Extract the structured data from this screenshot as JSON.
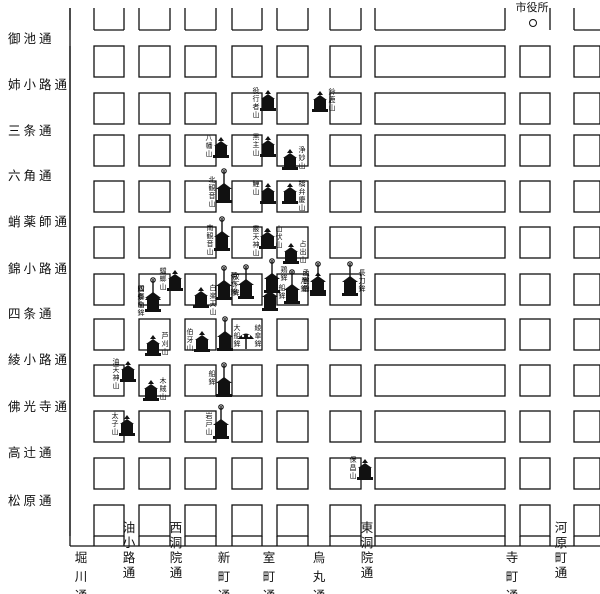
{
  "map": {
    "city_hall_label": "市役所",
    "east_west_streets": [
      {
        "id": "oike",
        "label": "御池通"
      },
      {
        "id": "aneyakoji",
        "label": "姉小路通"
      },
      {
        "id": "sanjo",
        "label": "三条通"
      },
      {
        "id": "rokkaku",
        "label": "六角通"
      },
      {
        "id": "takoyakushi",
        "label": "蛸薬師通"
      },
      {
        "id": "nishikikoji",
        "label": "錦小路通"
      },
      {
        "id": "shijo",
        "label": "四条通"
      },
      {
        "id": "ayanokoji",
        "label": "綾小路通"
      },
      {
        "id": "bukkoji",
        "label": "佛光寺通"
      },
      {
        "id": "takatsuji",
        "label": "高辻通"
      },
      {
        "id": "matsubara",
        "label": "松原通"
      }
    ],
    "north_south_streets": [
      {
        "id": "horikawa",
        "label": "堀川通"
      },
      {
        "id": "aburanokoji",
        "label": "油小路通"
      },
      {
        "id": "nishinotoin",
        "label": "西洞院通"
      },
      {
        "id": "shinmachi",
        "label": "新町通"
      },
      {
        "id": "muromachi",
        "label": "室町通"
      },
      {
        "id": "karasuma",
        "label": "烏丸通"
      },
      {
        "id": "higashinotoin",
        "label": "東洞院通"
      },
      {
        "id": "teramachi",
        "label": "寺町通"
      },
      {
        "id": "kawaramachi",
        "label": "河原町通"
      }
    ],
    "floats": [
      {
        "id": "yakugyoja",
        "label": "役行者山",
        "kind": "yama"
      },
      {
        "id": "suzuka",
        "label": "鈴鹿山",
        "kind": "yama"
      },
      {
        "id": "hachiman",
        "label": "八幡山",
        "kind": "yama"
      },
      {
        "id": "kuronushi",
        "label": "黒主山",
        "kind": "yama"
      },
      {
        "id": "jomyo",
        "label": "浄妙山",
        "kind": "yama"
      },
      {
        "id": "kitakannon",
        "label": "北観音山",
        "kind": "hoko"
      },
      {
        "id": "koi",
        "label": "鯉山",
        "kind": "yama"
      },
      {
        "id": "hashibenkei",
        "label": "橋弁慶山",
        "kind": "yama"
      },
      {
        "id": "tenjin",
        "label": "霰天神山",
        "kind": "yama"
      },
      {
        "id": "minamikannon",
        "label": "南観音山",
        "kind": "hoko"
      },
      {
        "id": "yamabushi",
        "label": "山伏山",
        "kind": "yama"
      },
      {
        "id": "urade",
        "label": "占出山",
        "kind": "yama"
      },
      {
        "id": "hakuga_n",
        "label": "蟷螂山",
        "kind": "yama"
      },
      {
        "id": "hakurakuten",
        "label": "白楽天山",
        "kind": "yama"
      },
      {
        "id": "kikusui",
        "label": "菊水鉾",
        "kind": "hoko"
      },
      {
        "id": "niwatori",
        "label": "鶏鉾",
        "kind": "hoko"
      },
      {
        "id": "tsuki",
        "label": "月鉾",
        "kind": "hoko"
      },
      {
        "id": "hoka",
        "label": "放下鉾",
        "kind": "hoko"
      },
      {
        "id": "iwato",
        "label": "岩戸山",
        "kind": "hoko"
      },
      {
        "id": "mofune",
        "label": "船鉾",
        "kind": "hoko"
      },
      {
        "id": "ashikari",
        "label": "芦刈山",
        "kind": "yama"
      },
      {
        "id": "hakuga",
        "label": "伯牙山",
        "kind": "yama"
      },
      {
        "id": "ofune",
        "label": "大船鉾",
        "kind": "hoko"
      },
      {
        "id": "ayagasa",
        "label": "綾傘鉾",
        "kind": "special"
      },
      {
        "id": "kanko",
        "label": "函谷鉾",
        "kind": "hoko"
      },
      {
        "id": "moso",
        "label": "孟宗山",
        "kind": "yama"
      },
      {
        "id": "naginata",
        "label": "長刀鉾",
        "kind": "hoko"
      },
      {
        "id": "shijokasa",
        "label": "四条傘鉾",
        "kind": "special"
      },
      {
        "id": "taishi",
        "label": "太子山",
        "kind": "yama"
      },
      {
        "id": "aburatenjin",
        "label": "油天神山",
        "kind": "yama"
      },
      {
        "id": "mokuzoku",
        "label": "木賊山",
        "kind": "yama"
      },
      {
        "id": "hosho",
        "label": "保昌山",
        "kind": "yama"
      },
      {
        "id": "toro",
        "label": "蟷螂山",
        "kind": "hoko"
      },
      {
        "id": "kita_fune",
        "label": "船鉾",
        "kind": "hoko"
      }
    ]
  }
}
